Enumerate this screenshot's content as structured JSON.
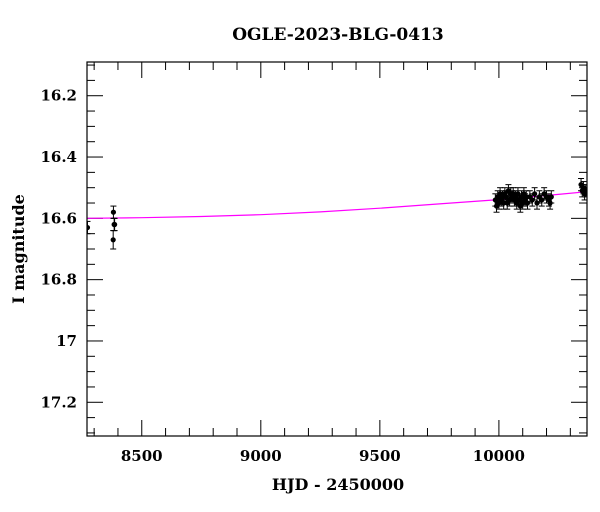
{
  "chart_data": {
    "type": "scatter",
    "title": "OGLE-2023-BLG-0413",
    "xlabel": "HJD - 2450000",
    "ylabel": "I magnitude",
    "xlim": [
      8270,
      10370
    ],
    "ylim": [
      16.09,
      17.31
    ],
    "y_inverted": true,
    "grid": false,
    "x_ticks": [
      8500,
      9000,
      9500,
      10000
    ],
    "x_tick_labels": [
      "8500",
      "9000",
      "9500",
      "10000"
    ],
    "y_ticks": [
      16.2,
      16.4,
      16.6,
      16.8,
      17.0,
      17.2
    ],
    "y_tick_labels": [
      "16.2",
      "16.4",
      "16.6",
      "16.8",
      "17",
      "17.2"
    ],
    "colors": {
      "points": "#000000",
      "model": "#ff00ff",
      "frame": "#000000"
    },
    "series": [
      {
        "kind": "points",
        "x": [
          8272,
          8380,
          8381,
          8384,
          8386,
          9985,
          9990,
          9995,
          10000,
          10005,
          10010,
          10015,
          10020,
          10025,
          10030,
          10035,
          10040,
          10045,
          10050,
          10055,
          10060,
          10065,
          10070,
          10075,
          10080,
          10085,
          10090,
          10095,
          10100,
          10105,
          10110,
          10115,
          10120,
          10130,
          10140,
          10150,
          10160,
          10170,
          10180,
          10190,
          10200,
          10210,
          10215,
          10220,
          10345,
          10350,
          10355,
          10360,
          10365
        ],
        "y": [
          16.63,
          16.67,
          16.58,
          16.62,
          16.62,
          16.54,
          16.56,
          16.53,
          16.55,
          16.52,
          16.54,
          16.53,
          16.55,
          16.52,
          16.53,
          16.55,
          16.51,
          16.54,
          16.52,
          16.53,
          16.52,
          16.54,
          16.53,
          16.55,
          16.52,
          16.54,
          16.56,
          16.53,
          16.55,
          16.52,
          16.54,
          16.53,
          16.55,
          16.53,
          16.54,
          16.52,
          16.55,
          16.53,
          16.54,
          16.52,
          16.53,
          16.54,
          16.55,
          16.53,
          16.49,
          16.51,
          16.5,
          16.52,
          16.51
        ],
        "err": [
          0.02,
          0.03,
          0.02,
          0.02,
          0.02,
          0.02,
          0.02,
          0.02,
          0.02,
          0.02,
          0.02,
          0.02,
          0.02,
          0.02,
          0.02,
          0.02,
          0.02,
          0.02,
          0.02,
          0.02,
          0.02,
          0.02,
          0.02,
          0.02,
          0.02,
          0.02,
          0.02,
          0.02,
          0.02,
          0.02,
          0.02,
          0.02,
          0.02,
          0.02,
          0.02,
          0.02,
          0.02,
          0.02,
          0.02,
          0.02,
          0.02,
          0.02,
          0.02,
          0.02,
          0.02,
          0.02,
          0.02,
          0.02,
          0.02
        ]
      },
      {
        "kind": "model-line",
        "x": [
          8270,
          8500,
          8750,
          9000,
          9250,
          9500,
          9750,
          10000,
          10250,
          10370
        ],
        "y": [
          16.6,
          16.598,
          16.594,
          16.588,
          16.579,
          16.567,
          16.553,
          16.539,
          16.522,
          16.513
        ]
      }
    ]
  }
}
